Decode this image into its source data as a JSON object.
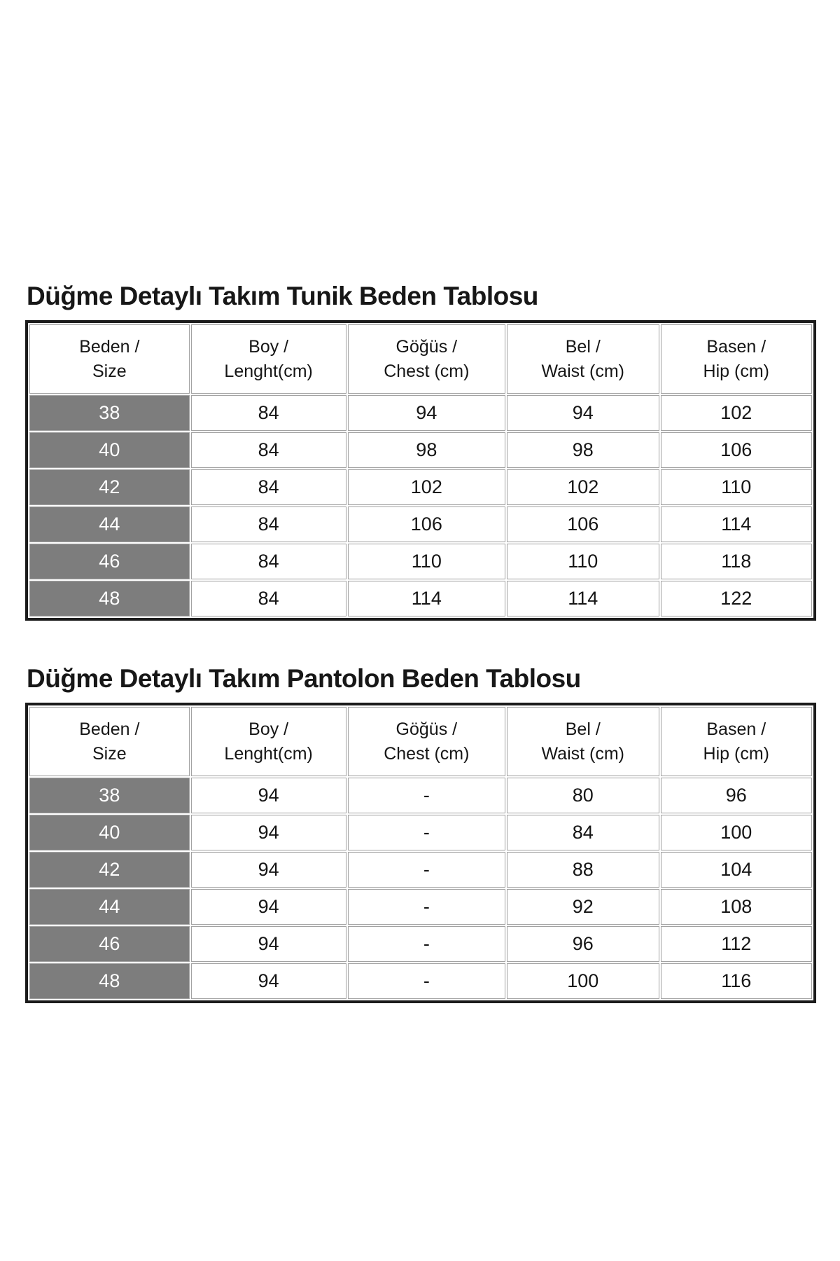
{
  "page": {
    "background_color": "#ffffff",
    "text_color": "#161616"
  },
  "colors": {
    "size_column_bg": "#7d7d7d",
    "size_column_text": "#ffffff",
    "outer_border": "#1b1b1b",
    "grid_line": "#a2a2a2"
  },
  "tables": [
    {
      "title": "Düğme Detaylı Takım Tunik Beden Tablosu",
      "columns": [
        [
          "Beden /",
          "Size"
        ],
        [
          "Boy /",
          "Lenght(cm)"
        ],
        [
          "Göğüs /",
          "Chest (cm)"
        ],
        [
          "Bel /",
          "Waist (cm)"
        ],
        [
          "Basen /",
          "Hip (cm)"
        ]
      ],
      "rows": [
        [
          "38",
          "84",
          "94",
          "94",
          "102"
        ],
        [
          "40",
          "84",
          "98",
          "98",
          "106"
        ],
        [
          "42",
          "84",
          "102",
          "102",
          "110"
        ],
        [
          "44",
          "84",
          "106",
          "106",
          "114"
        ],
        [
          "46",
          "84",
          "110",
          "110",
          "118"
        ],
        [
          "48",
          "84",
          "114",
          "114",
          "122"
        ]
      ]
    },
    {
      "title": "Düğme Detaylı Takım Pantolon Beden Tablosu",
      "columns": [
        [
          "Beden /",
          "Size"
        ],
        [
          "Boy /",
          "Lenght(cm)"
        ],
        [
          "Göğüs /",
          "Chest (cm)"
        ],
        [
          "Bel /",
          "Waist (cm)"
        ],
        [
          "Basen /",
          "Hip (cm)"
        ]
      ],
      "rows": [
        [
          "38",
          "94",
          "-",
          "80",
          "96"
        ],
        [
          "40",
          "94",
          "-",
          "84",
          "100"
        ],
        [
          "42",
          "94",
          "-",
          "88",
          "104"
        ],
        [
          "44",
          "94",
          "-",
          "92",
          "108"
        ],
        [
          "46",
          "94",
          "-",
          "96",
          "112"
        ],
        [
          "48",
          "94",
          "-",
          "100",
          "116"
        ]
      ]
    }
  ]
}
